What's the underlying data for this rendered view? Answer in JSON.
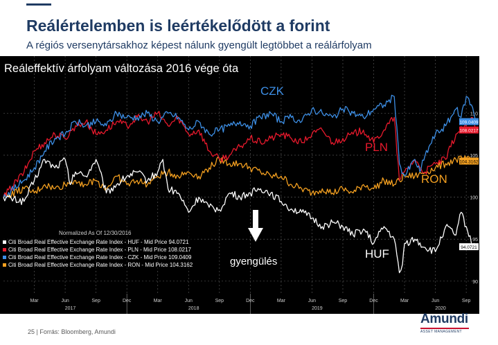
{
  "slide": {
    "title": "Reálértelemben is leértékelődött a forint",
    "subtitle": "A régiós versenytársakhoz képest nálunk gyengült legtöbbet a reálárfolyam",
    "footer_page": "25",
    "footer_source": "Forrás: Bloomberg, Amundi",
    "logo_word": "Amundi",
    "logo_sub": "ASSET MANAGEMENT"
  },
  "chart_data": {
    "type": "line",
    "title": "Reáleffektív árfolyam változása 2016 vége óta",
    "legend_header": "Normalized As Of 12/30/2016",
    "ylim": [
      88.5,
      116.8
    ],
    "y_ticks": [
      90,
      95,
      100,
      105,
      110
    ],
    "month_ticks": [
      {
        "label": "Mar",
        "m": 3
      },
      {
        "label": "Jun",
        "m": 6
      },
      {
        "label": "Sep",
        "m": 9
      },
      {
        "label": "Dec",
        "m": 12
      },
      {
        "label": "Mar",
        "m": 15
      },
      {
        "label": "Jun",
        "m": 18
      },
      {
        "label": "Sep",
        "m": 21
      },
      {
        "label": "Dec",
        "m": 24
      },
      {
        "label": "Mar",
        "m": 27
      },
      {
        "label": "Jun",
        "m": 30
      },
      {
        "label": "Sep",
        "m": 33
      },
      {
        "label": "Dec",
        "m": 36
      },
      {
        "label": "Mar",
        "m": 39
      },
      {
        "label": "Jun",
        "m": 42
      },
      {
        "label": "Sep",
        "m": 45
      }
    ],
    "year_ticks": [
      {
        "label": "2017",
        "m": 6.5
      },
      {
        "label": "2018",
        "m": 18.5
      },
      {
        "label": "2019",
        "m": 30.5
      },
      {
        "label": "2020",
        "m": 42.5
      }
    ],
    "annotations": {
      "czk": "CZK",
      "pln": "PLN",
      "ron": "RON",
      "huf": "HUF",
      "weakening": "gyengülés"
    },
    "series": [
      {
        "name": "Citi Broad Real Effective Exchange Rate Index - HUF - Mid Price 94.0721",
        "key": "huf",
        "color": "#ffffff",
        "last_label": "94.0721",
        "x": [
          0,
          2,
          3,
          4,
          5,
          6,
          6.5,
          7,
          8,
          9,
          10,
          11,
          12,
          13,
          14,
          15,
          15.5,
          16,
          17,
          18,
          19,
          20,
          21,
          22,
          23,
          24,
          25,
          26,
          27,
          28,
          29,
          30,
          31,
          32,
          33,
          34,
          35,
          36,
          37,
          38,
          38.5,
          38.8,
          39,
          40,
          41,
          42,
          43,
          44,
          44.5,
          45,
          45.5,
          46
        ],
        "values": [
          100,
          99.5,
          102,
          104.5,
          103.5,
          104.5,
          101.5,
          103,
          102.5,
          104.5,
          100.5,
          101.5,
          102.5,
          103,
          102,
          103,
          104.5,
          101,
          100.5,
          98.2,
          100,
          98.8,
          98.5,
          100.5,
          100,
          100.5,
          101,
          100.5,
          99.5,
          98.6,
          98.2,
          97.5,
          96.5,
          97,
          96.5,
          95.5,
          96.2,
          94.5,
          96.5,
          95,
          91,
          92,
          94.5,
          95,
          94,
          93.5,
          96.5,
          95.5,
          98.2,
          96.5,
          94.5,
          94.1
        ]
      },
      {
        "name": "Citi Broad Real Effective Exchange Rate Index - PLN - Mid Price 108.0217",
        "key": "pln",
        "color": "#e8192c",
        "last_label": "108.0217",
        "x": [
          0,
          2,
          3,
          4,
          5,
          6,
          7,
          8,
          9,
          10,
          11,
          12,
          13,
          14,
          15,
          16,
          17,
          18,
          19,
          20,
          21,
          22,
          23,
          24,
          25,
          26,
          27,
          28,
          29,
          30,
          31,
          32,
          33,
          34,
          35,
          36,
          37,
          38,
          38.5,
          39,
          40,
          40.5,
          41,
          42,
          43,
          44,
          45,
          45.5,
          46
        ],
        "values": [
          100,
          103,
          105.5,
          106.5,
          107.5,
          107,
          108.5,
          109,
          107.5,
          108,
          109,
          108.5,
          109.5,
          109,
          110,
          108.5,
          109.5,
          107.5,
          108,
          105.5,
          104.5,
          105,
          106,
          107,
          106.5,
          107,
          107.5,
          107,
          106.5,
          107.5,
          108,
          106.5,
          107,
          107.5,
          108,
          106.5,
          108,
          109.5,
          102,
          103,
          104.5,
          103.5,
          103,
          104,
          104.5,
          107.5,
          108.5,
          109.5,
          108
        ]
      },
      {
        "name": "Citi Broad Real Effective Exchange Rate Index - CZK - Mid Price 109.0409",
        "key": "czk",
        "color": "#3d8fe6",
        "last_label": "109.0409",
        "x": [
          0,
          2,
          3,
          4,
          5,
          6,
          7,
          8,
          9,
          10,
          11,
          12,
          13,
          14,
          15,
          16,
          17,
          18,
          19,
          20,
          21,
          22,
          23,
          24,
          25,
          26,
          27,
          28,
          29,
          30,
          31,
          32,
          33,
          34,
          35,
          36,
          37,
          38,
          38.5,
          39,
          40,
          40.5,
          41,
          42,
          43,
          44,
          44.5,
          45,
          45.5,
          46
        ],
        "values": [
          100,
          102,
          103.5,
          105.5,
          107,
          107.5,
          109,
          108.5,
          109,
          108.5,
          110,
          109.5,
          109.5,
          110,
          109,
          110,
          109.5,
          108,
          109,
          107.5,
          108,
          108.5,
          109,
          108.5,
          109.5,
          110,
          109,
          109.5,
          109,
          110.5,
          110,
          109.5,
          110.5,
          110,
          109.5,
          110.5,
          111,
          112,
          104,
          102.5,
          104.5,
          103,
          105,
          107.5,
          108.5,
          110.5,
          109.5,
          112,
          111,
          109
        ]
      },
      {
        "name": "Citi Broad Real Effective Exchange Rate Index - RON - Mid Price 104.3162",
        "key": "ron",
        "color": "#f4a020",
        "last_label": "104.3162",
        "x": [
          0,
          2,
          3,
          4,
          5,
          6,
          7,
          8,
          9,
          10,
          11,
          12,
          13,
          14,
          15,
          16,
          17,
          18,
          19,
          20,
          21,
          22,
          23,
          24,
          25,
          26,
          27,
          28,
          29,
          30,
          31,
          32,
          33,
          34,
          35,
          36,
          37,
          38,
          39,
          40,
          41,
          42,
          43,
          44,
          45,
          46
        ],
        "values": [
          100,
          101,
          100.5,
          101.5,
          101,
          101.5,
          102,
          101.5,
          102,
          101,
          102.5,
          101.5,
          102,
          101.5,
          102.5,
          103,
          102.5,
          103,
          102.5,
          103.5,
          104.5,
          104,
          104,
          103.5,
          103,
          102.5,
          102.5,
          101.5,
          101,
          100.5,
          101,
          100.5,
          101,
          100.5,
          101.5,
          101,
          102,
          101.5,
          102.5,
          102.5,
          103,
          103.5,
          104,
          104.5,
          104.5,
          104.3
        ]
      }
    ]
  }
}
